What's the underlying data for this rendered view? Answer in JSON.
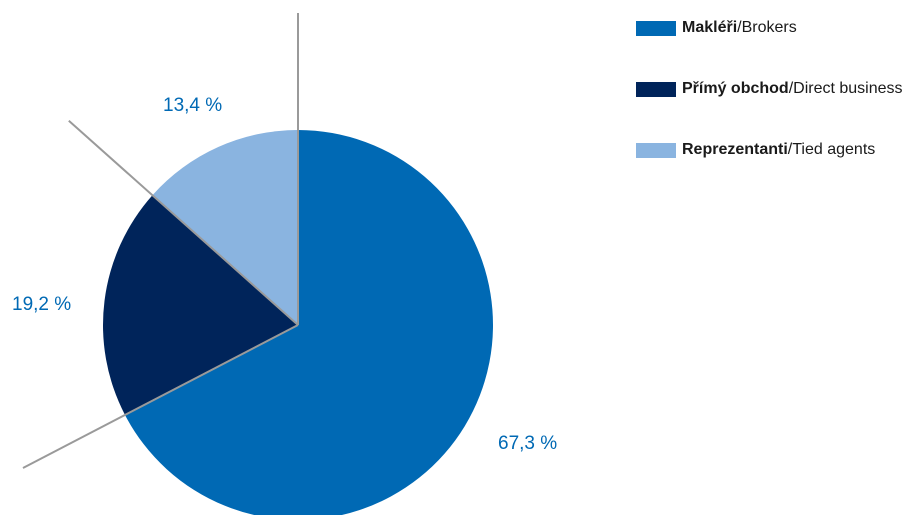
{
  "chart_data": {
    "type": "pie",
    "slices": [
      {
        "label_bold": "Makléři",
        "label_rest": "/Brokers",
        "value": 67.3,
        "value_label": "67,3 %",
        "color": "#0069b4"
      },
      {
        "label_bold": "Přímý obchod",
        "label_rest": "/Direct business",
        "value": 19.2,
        "value_label": "19,2 %",
        "color": "#00245a"
      },
      {
        "label_bold": "Reprezentanti",
        "label_rest": "/Tied agents",
        "value": 13.4,
        "value_label": "13,4 %",
        "color": "#8ab4e0"
      }
    ],
    "start_angle": "12 o'clock",
    "direction": "clockwise",
    "legend_position": "top-right",
    "leader_line_color": "#9a9a9a"
  }
}
